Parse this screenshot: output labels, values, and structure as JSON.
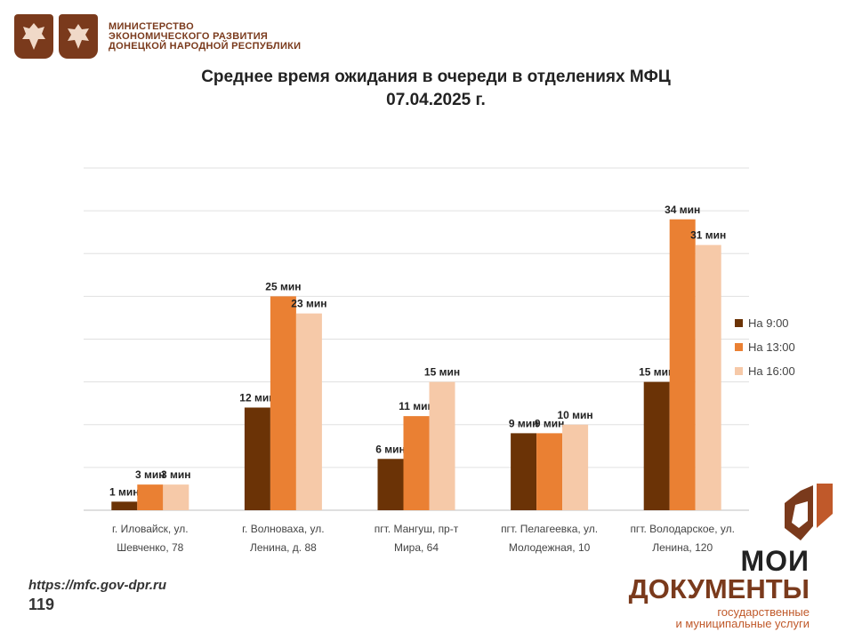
{
  "header": {
    "ministry_line1": "МИНИСТЕРСТВО",
    "ministry_line2": "ЭКОНОМИЧЕСКОГО РАЗВИТИЯ",
    "ministry_line3": "ДОНЕЦКОЙ НАРОДНОЙ РЕСПУБЛИКИ"
  },
  "footer": {
    "url": "https://mfc.gov-dpr.ru",
    "page": "119",
    "brand_line1": "МОИ",
    "brand_line2": "ДОКУМЕНТЫ",
    "brand_line3": "государственные",
    "brand_line4": "и муниципальные услуги"
  },
  "colors": {
    "s1": "#6b3306",
    "s2": "#ea8033",
    "s3": "#f6c9a8",
    "brand": "#7a3a1c",
    "accent": "#c0592a"
  },
  "chart_data": {
    "type": "bar",
    "title_line1": "Среднее время ожидания в очереди в отделениях МФЦ",
    "title_line2": "07.04.2025 г.",
    "categories": [
      [
        "г. Иловайск, ул.",
        "Шевченко, 78"
      ],
      [
        "г. Волноваха, ул.",
        "Ленина, д. 88"
      ],
      [
        "пгт. Мангуш, пр-т",
        "Мира, 64"
      ],
      [
        "пгт. Пелагеевка, ул.",
        "Молодежная, 10"
      ],
      [
        "пгт. Володарское, ул.",
        "Ленина, 120"
      ]
    ],
    "series": [
      {
        "name": "На 9:00",
        "values": [
          1,
          12,
          6,
          9,
          15
        ],
        "labels": [
          "1 мин",
          "12 мин",
          "6 мин",
          "9 мин",
          "15 мин"
        ]
      },
      {
        "name": "На 13:00",
        "values": [
          3,
          25,
          11,
          9,
          34
        ],
        "labels": [
          "3  мин",
          "25 мин",
          "11 мин",
          "9 мин",
          "34 мин"
        ]
      },
      {
        "name": "На 16:00",
        "values": [
          3,
          23,
          15,
          10,
          31
        ],
        "labels": [
          "3 мин",
          "23 мин",
          "15 мин",
          "10 мин",
          "31 мин"
        ]
      }
    ],
    "ylim": [
      0,
      40
    ],
    "grid": true,
    "legend": "right"
  }
}
